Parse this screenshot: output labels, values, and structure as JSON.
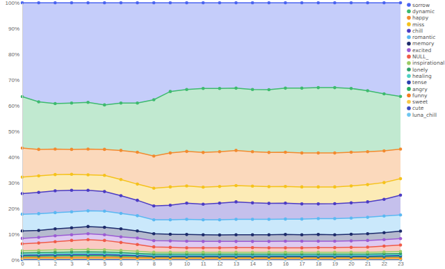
{
  "chart_data": {
    "type": "area",
    "stacked": true,
    "marker": "circle",
    "grid": false,
    "legend": "right",
    "x": [
      0,
      1,
      2,
      3,
      4,
      5,
      6,
      7,
      8,
      9,
      10,
      11,
      12,
      13,
      14,
      15,
      16,
      17,
      18,
      19,
      20,
      21,
      22,
      23
    ],
    "xlim": [
      0,
      23
    ],
    "xticks": [
      0,
      1,
      2,
      3,
      4,
      5,
      6,
      7,
      8,
      9,
      10,
      11,
      12,
      13,
      14,
      15,
      16,
      17,
      18,
      19,
      20,
      21,
      22,
      23
    ],
    "ylim": [
      0,
      100
    ],
    "yticks": [
      {
        "value": 0,
        "label": "0%"
      },
      {
        "value": 10,
        "label": "10%"
      },
      {
        "value": 20,
        "label": "20%"
      },
      {
        "value": 30,
        "label": "30%"
      },
      {
        "value": 40,
        "label": "40%"
      },
      {
        "value": 50,
        "label": "50%"
      },
      {
        "value": 60,
        "label": "60%"
      },
      {
        "value": 70,
        "label": "70%"
      },
      {
        "value": 80,
        "label": "80%"
      },
      {
        "value": 90,
        "label": "90%"
      },
      {
        "value": 100,
        "label": "100%"
      }
    ],
    "series": [
      {
        "name": "sorrow",
        "color": "#4a64f0",
        "values": [
          36.5,
          38.5,
          39.2,
          39,
          38.7,
          39.7,
          39,
          39,
          37.7,
          34.5,
          33.7,
          33.3,
          33.3,
          33.2,
          33.7,
          33.8,
          33.2,
          33.2,
          33,
          33,
          33.3,
          34.2,
          35.4,
          36.4
        ]
      },
      {
        "name": "dynamic",
        "color": "#3dba6e",
        "values": [
          20.0,
          18.5,
          17.7,
          18.0,
          18.2,
          17.3,
          18.4,
          19.1,
          21.9,
          23.9,
          24.1,
          24.9,
          24.6,
          24.2,
          24.2,
          24.4,
          24.9,
          25.2,
          25.4,
          25.4,
          24.8,
          23.7,
          22.2,
          20.5
        ]
      },
      {
        "name": "happy",
        "color": "#f28a2e",
        "values": [
          11.3,
          10.3,
          9.9,
          9.7,
          10.0,
          10.1,
          11.3,
          12.4,
          12.5,
          13.2,
          13.4,
          13.5,
          13.5,
          13.7,
          13.4,
          13.3,
          13.3,
          13.2,
          13.2,
          13.2,
          13.1,
          12.8,
          12.3,
          11.5
        ]
      },
      {
        "name": "miss",
        "color": "#f5c21b",
        "values": [
          6.4,
          6.4,
          6.3,
          6.2,
          6.0,
          6.3,
          6.3,
          6.3,
          6.9,
          7.1,
          6.7,
          6.6,
          6.5,
          6.3,
          6.5,
          6.5,
          6.5,
          6.6,
          6.6,
          6.5,
          6.6,
          6.7,
          6.5,
          6.4
        ]
      },
      {
        "name": "chill",
        "color": "#4b3bc4",
        "values": [
          8.0,
          8.3,
          8.5,
          8.4,
          8.0,
          7.6,
          6.9,
          6.0,
          5.4,
          5.7,
          6.3,
          6.1,
          6.5,
          6.8,
          6.4,
          6.2,
          6.2,
          5.9,
          5.7,
          5.8,
          5.9,
          6.0,
          6.5,
          7.7
        ]
      },
      {
        "name": "romantic",
        "color": "#5ab8f2",
        "values": [
          6.5,
          6.5,
          6.3,
          6.2,
          6.1,
          6.3,
          6.0,
          5.9,
          5.4,
          5.6,
          5.9,
          5.8,
          5.9,
          6.0,
          6.0,
          6.0,
          6.0,
          6.1,
          6.2,
          6.3,
          6.3,
          6.4,
          6.5,
          6.3
        ]
      },
      {
        "name": "memory",
        "color": "#1c2b6b",
        "values": [
          2.9,
          2.7,
          2.7,
          2.7,
          2.8,
          2.9,
          3.1,
          2.8,
          2.7,
          2.6,
          2.6,
          2.6,
          2.5,
          2.6,
          2.6,
          2.6,
          2.6,
          2.5,
          2.6,
          2.5,
          2.6,
          2.6,
          2.7,
          2.9
        ]
      },
      {
        "name": "excited",
        "color": "#9b5bd4",
        "values": [
          2.1,
          2.2,
          2.3,
          2.2,
          2.3,
          2.2,
          2.2,
          2.5,
          2.4,
          2.5,
          2.6,
          2.5,
          2.5,
          2.4,
          2.4,
          2.5,
          2.6,
          2.6,
          2.5,
          2.5,
          2.5,
          2.6,
          2.5,
          2.5
        ]
      },
      {
        "name": "NULL_",
        "color": "#f05a48",
        "values": [
          2.7,
          2.9,
          3.2,
          3.6,
          3.8,
          3.6,
          3.1,
          2.6,
          2.1,
          1.9,
          1.7,
          1.7,
          1.7,
          1.8,
          1.8,
          1.7,
          1.7,
          1.7,
          1.8,
          1.8,
          1.9,
          2.0,
          2.3,
          2.5
        ]
      },
      {
        "name": "inspirational",
        "color": "#9ccc65",
        "values": [
          0.8,
          0.8,
          0.9,
          0.9,
          0.9,
          0.9,
          0.8,
          0.8,
          0.7,
          0.7,
          0.7,
          0.7,
          0.7,
          0.7,
          0.7,
          0.7,
          0.7,
          0.7,
          0.7,
          0.7,
          0.7,
          0.7,
          0.7,
          0.8
        ]
      },
      {
        "name": "lonely",
        "color": "#2e9e6b",
        "values": [
          0.5,
          0.5,
          0.5,
          0.5,
          0.6,
          0.5,
          0.5,
          0.4,
          0.4,
          0.4,
          0.4,
          0.4,
          0.4,
          0.4,
          0.4,
          0.4,
          0.4,
          0.4,
          0.4,
          0.4,
          0.4,
          0.4,
          0.4,
          0.4
        ]
      },
      {
        "name": "healing",
        "color": "#4fd1c5",
        "values": [
          0.5,
          0.5,
          0.5,
          0.5,
          0.5,
          0.5,
          0.5,
          0.5,
          0.4,
          0.4,
          0.4,
          0.4,
          0.4,
          0.4,
          0.4,
          0.4,
          0.4,
          0.4,
          0.4,
          0.4,
          0.4,
          0.4,
          0.4,
          0.4
        ]
      },
      {
        "name": "tense",
        "color": "#2a3fb0",
        "values": [
          0.3,
          0.4,
          0.4,
          0.4,
          0.4,
          0.4,
          0.4,
          0.3,
          0.3,
          0.3,
          0.3,
          0.3,
          0.3,
          0.3,
          0.3,
          0.3,
          0.3,
          0.3,
          0.3,
          0.3,
          0.3,
          0.3,
          0.3,
          0.3
        ]
      },
      {
        "name": "angry",
        "color": "#27ae60",
        "values": [
          0.5,
          0.5,
          0.6,
          0.6,
          0.6,
          0.6,
          0.5,
          0.5,
          0.4,
          0.4,
          0.4,
          0.4,
          0.4,
          0.4,
          0.4,
          0.4,
          0.4,
          0.4,
          0.4,
          0.4,
          0.4,
          0.4,
          0.5,
          0.5
        ]
      },
      {
        "name": "funny",
        "color": "#f57c20",
        "values": [
          0.4,
          0.4,
          0.4,
          0.5,
          0.5,
          0.5,
          0.4,
          0.4,
          0.3,
          0.3,
          0.3,
          0.3,
          0.3,
          0.3,
          0.3,
          0.3,
          0.3,
          0.3,
          0.3,
          0.3,
          0.3,
          0.3,
          0.3,
          0.4
        ]
      },
      {
        "name": "sweet",
        "color": "#f7c948",
        "values": [
          0.3,
          0.3,
          0.3,
          0.3,
          0.3,
          0.3,
          0.3,
          0.2,
          0.2,
          0.2,
          0.2,
          0.2,
          0.2,
          0.2,
          0.2,
          0.2,
          0.2,
          0.2,
          0.2,
          0.2,
          0.2,
          0.2,
          0.2,
          0.2
        ]
      },
      {
        "name": "cute",
        "color": "#3b4cc0",
        "values": [
          0.2,
          0.2,
          0.2,
          0.2,
          0.2,
          0.2,
          0.2,
          0.2,
          0.2,
          0.2,
          0.2,
          0.2,
          0.2,
          0.2,
          0.2,
          0.2,
          0.2,
          0.2,
          0.2,
          0.2,
          0.2,
          0.2,
          0.2,
          0.2
        ]
      },
      {
        "name": "luna_chill",
        "color": "#6ec6f0",
        "values": [
          0.1,
          0.1,
          0.1,
          0.1,
          0.1,
          0.1,
          0.1,
          0.1,
          0.1,
          0.1,
          0.1,
          0.1,
          0.1,
          0.1,
          0.1,
          0.1,
          0.1,
          0.1,
          0.1,
          0.1,
          0.1,
          0.1,
          0.1,
          0.1
        ]
      }
    ]
  }
}
